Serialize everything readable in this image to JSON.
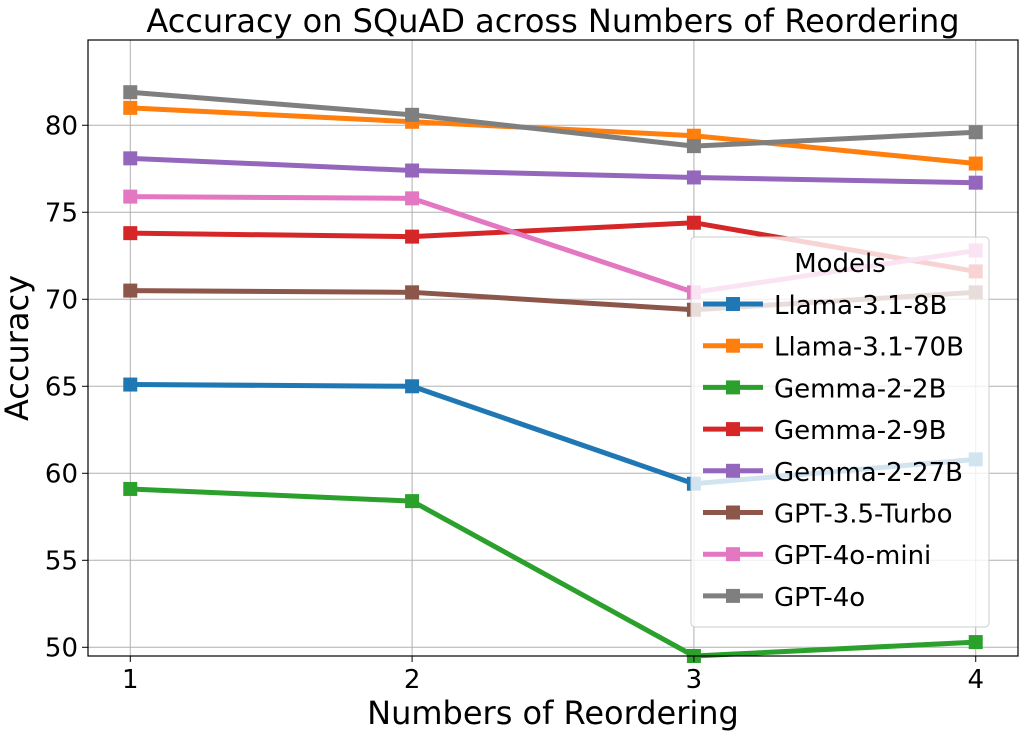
{
  "chart_data": {
    "type": "line",
    "title": "Accuracy on SQuAD across Numbers of Reordering",
    "xlabel": "Numbers of Reordering",
    "ylabel": "Accuracy",
    "x": [
      1,
      2,
      3,
      4
    ],
    "xticks": [
      "1",
      "2",
      "3",
      "4"
    ],
    "yticks": [
      50,
      55,
      60,
      65,
      70,
      75,
      80
    ],
    "xlim": [
      0.85,
      4.15
    ],
    "ylim": [
      49.5,
      84.9
    ],
    "grid": true,
    "legend_title": "Models",
    "legend_position": "right",
    "series": [
      {
        "name": "Llama-3.1-8B",
        "color": "#1f77b4",
        "values": [
          65.1,
          65.0,
          59.4,
          60.8
        ]
      },
      {
        "name": "Llama-3.1-70B",
        "color": "#ff7f0e",
        "values": [
          81.0,
          80.2,
          79.4,
          77.8
        ]
      },
      {
        "name": "Gemma-2-2B",
        "color": "#2ca02c",
        "values": [
          59.1,
          58.4,
          49.5,
          50.3
        ]
      },
      {
        "name": "Gemma-2-9B",
        "color": "#d62728",
        "values": [
          73.8,
          73.6,
          74.4,
          71.6
        ]
      },
      {
        "name": "Gemma-2-27B",
        "color": "#9467bd",
        "values": [
          78.1,
          77.4,
          77.0,
          76.7
        ]
      },
      {
        "name": "GPT-3.5-Turbo",
        "color": "#8c564b",
        "values": [
          70.5,
          70.4,
          69.4,
          70.4
        ]
      },
      {
        "name": "GPT-4o-mini",
        "color": "#e377c2",
        "values": [
          75.9,
          75.8,
          70.4,
          72.8
        ]
      },
      {
        "name": "GPT-4o",
        "color": "#7f7f7f",
        "values": [
          81.9,
          80.6,
          78.8,
          79.6
        ]
      }
    ]
  }
}
